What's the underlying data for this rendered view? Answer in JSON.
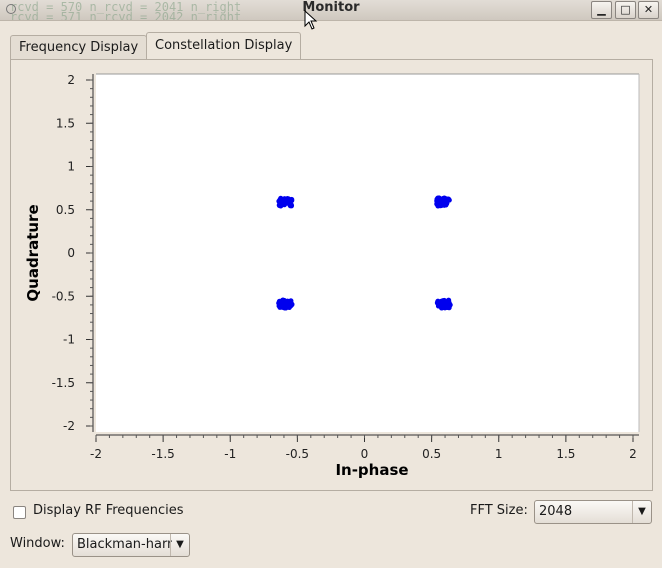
{
  "window": {
    "title": "Monitor",
    "background_text_line1": "rcvd = 570  n_rcvd = 2041  n_right",
    "background_text_line2": "rcvd = 571  n_rcvd = 2042  n_right",
    "controls": {
      "minimize": "▁",
      "maximize": "□",
      "close": "✕"
    }
  },
  "tabs": [
    {
      "label": "Frequency Display",
      "active": false
    },
    {
      "label": "Constellation Display",
      "active": true
    }
  ],
  "chart_data": {
    "type": "scatter",
    "xlabel": "In-phase",
    "ylabel": "Quadrature",
    "xlim": [
      -2,
      2
    ],
    "ylim": [
      -2,
      2
    ],
    "x_ticks": [
      "-2",
      "-1.5",
      "-1",
      "-0.5",
      "0",
      "0.5",
      "1",
      "1.5",
      "2"
    ],
    "y_ticks": [
      "2",
      "1.5",
      "1",
      "0.5",
      "0",
      "-0.5",
      "-1",
      "-1.5",
      "-2"
    ],
    "point_color": "#0000ee",
    "grid": false,
    "clusters": [
      {
        "x": -0.59,
        "y": 0.59
      },
      {
        "x": 0.59,
        "y": 0.59
      },
      {
        "x": -0.59,
        "y": -0.59
      },
      {
        "x": 0.59,
        "y": -0.59
      }
    ]
  },
  "controls": {
    "display_rf_label": "Display RF Frequencies",
    "display_rf_checked": false,
    "fft_size_label": "FFT Size:",
    "fft_size_value": "2048",
    "window_label": "Window:",
    "window_value": "Blackman-harris"
  }
}
